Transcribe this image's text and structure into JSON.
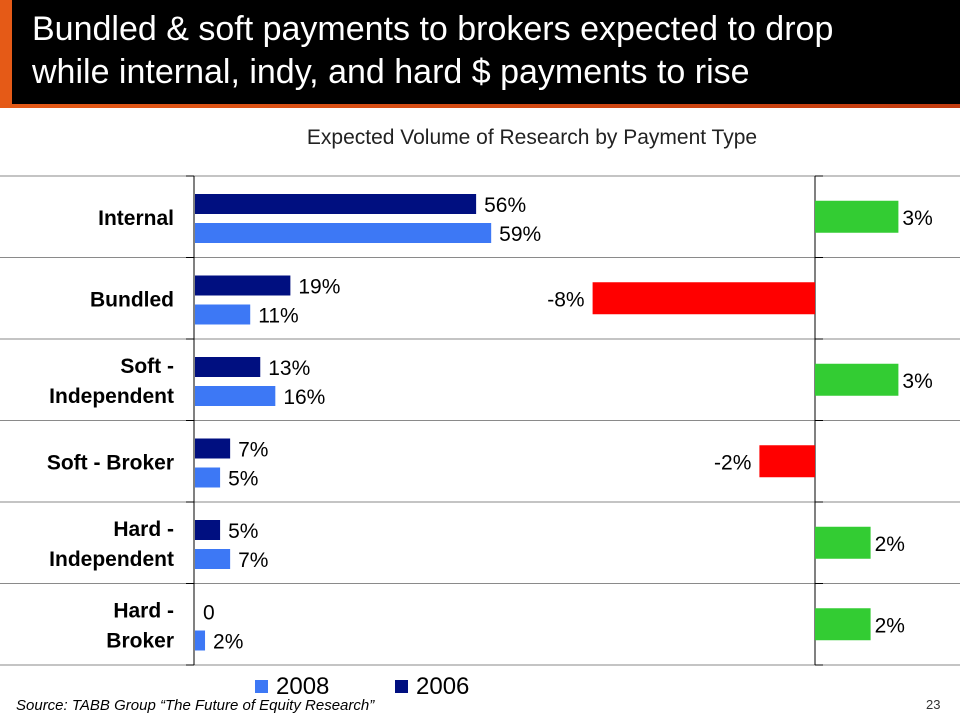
{
  "slide": {
    "title_line1": "Bundled & soft payments to brokers expected to drop",
    "title_line2": "while internal, indy, and hard $ payments to rise",
    "source": "Source: TABB Group “The Future of Equity Research”",
    "page_number": "23"
  },
  "colors": {
    "series_2008": "#3d78f5",
    "series_2006": "#000f80",
    "increase": "#33cc33",
    "decrease": "#ff0000"
  },
  "chart_data": [
    {
      "type": "bar",
      "orientation": "horizontal",
      "title": "Expected Volume of Research by Payment Type",
      "categories": [
        [
          "Internal"
        ],
        [
          "Bundled"
        ],
        [
          "Soft -",
          "Independent"
        ],
        [
          "Soft - Broker"
        ],
        [
          "Hard -",
          "Independent"
        ],
        [
          "Hard -",
          "Broker"
        ]
      ],
      "series": [
        {
          "name": "2006",
          "values": [
            56,
            19,
            13,
            7,
            5,
            0
          ],
          "labels": [
            "56%",
            "19%",
            "13%",
            "7%",
            "5%",
            "0"
          ]
        },
        {
          "name": "2008",
          "values": [
            59,
            11,
            16,
            5,
            7,
            2
          ],
          "labels": [
            "59%",
            "11%",
            "16%",
            "5%",
            "7%",
            "2%"
          ]
        }
      ],
      "legend": [
        "2008",
        "2006"
      ],
      "legend_position": "bottom",
      "grid": false
    },
    {
      "type": "bar",
      "orientation": "horizontal",
      "title": "",
      "categories": [
        [
          "Internal"
        ],
        [
          "Bundled"
        ],
        [
          "Soft -",
          "Independent"
        ],
        [
          "Soft - Broker"
        ],
        [
          "Hard -",
          "Independent"
        ],
        [
          "Hard -",
          "Broker"
        ]
      ],
      "values": [
        3,
        -8,
        3,
        -2,
        2,
        2
      ],
      "labels": [
        "3%",
        "-8%",
        "3%",
        "-2%",
        "2%",
        "2%"
      ]
    }
  ]
}
